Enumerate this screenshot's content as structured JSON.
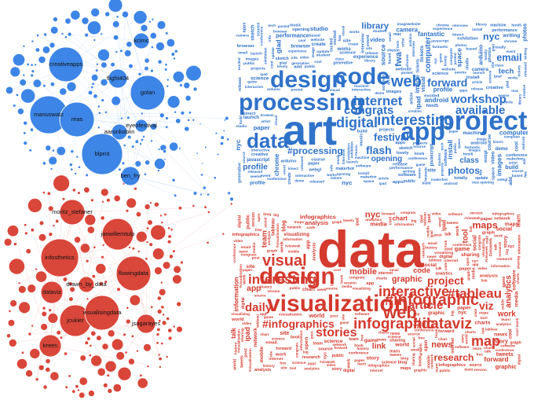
{
  "network": {
    "blue_color": "#3d85e6",
    "red_color": "#d9463a",
    "blue_labels": [
      "creativeapps",
      "kcimc",
      "golan",
      "manuswatz",
      "flight404",
      "reas",
      "aaronkoblin",
      "eyeofestival",
      "blprnt",
      "ben_fry"
    ],
    "red_labels": [
      "moritz_stefaner",
      "janwillemtulp",
      "infosthetics",
      "drawn_by_data",
      "flowingdata",
      "dataviz",
      "jcukier",
      "visualisingdata",
      "krees",
      "jsagarayes"
    ]
  },
  "cloud_blue": {
    "color": "#2f72c9",
    "words": [
      "design",
      "code",
      "processing",
      "art",
      "app",
      "project",
      "data",
      "web",
      "internet",
      "digital",
      "interesting",
      "workshop",
      "congrats",
      "flash",
      "festival",
      "#processing",
      "works",
      "email",
      "article",
      "site",
      "forward",
      "available",
      "source",
      "makerbot",
      "interactive",
      "kinect",
      "creative",
      "ipad",
      "nyc",
      "images",
      "artist",
      "released",
      "apps",
      "html5",
      "install",
      "visual",
      "build",
      "launch",
      "cool",
      "music",
      "software",
      "computer",
      "interview",
      "tickets",
      "photos",
      "arduino",
      "public",
      "based",
      "seems",
      "posted",
      "space",
      "glad",
      "website",
      "projects",
      "event",
      "fwa",
      "conference",
      "machine",
      "browser",
      "exhibition",
      "chrome",
      "library",
      "excited",
      "fantastic",
      "image",
      "android",
      "tech",
      "opening",
      "science",
      "release",
      "generative",
      "performance",
      "update",
      "javascript",
      "webgl",
      "lovely",
      "profile",
      "video",
      "paper",
      "create",
      "course",
      "class",
      "student",
      "experience",
      "game",
      "studio",
      "mac",
      "add",
      "info",
      "demo",
      "camera",
      "sketch",
      "writing",
      "totally"
    ]
  },
  "cloud_red": {
    "color": "#d43a2e",
    "words": [
      "data",
      "visualization",
      "design",
      "visual",
      "interesting",
      "#infographic",
      "infographic",
      "#dataviz",
      "interactive",
      "map",
      "web",
      "stories",
      "#infographics",
      "daily",
      "article",
      "project",
      "app",
      "#tableau",
      "viz",
      "information",
      "infographics",
      "#visweek",
      "#visualisation",
      "chart",
      "public",
      "science",
      "tableau",
      "site",
      "charts",
      "maps",
      "email",
      "ipad",
      "congrats",
      "tweets",
      "source",
      "conference",
      "software",
      "research",
      "forward",
      "internet",
      "analytics",
      "digital",
      "week",
      "history",
      "paper",
      "visualizing",
      "team",
      "graphic",
      "nyc",
      "post",
      "cool",
      "tool",
      "book",
      "blog",
      "work",
      "link",
      "video",
      "version",
      "code",
      "learn",
      "news",
      "world",
      "mobile",
      "game",
      "free",
      "social",
      "open",
      "sharing",
      "big",
      "network",
      "analysis",
      "media",
      "talk",
      "graph",
      "story"
    ]
  }
}
